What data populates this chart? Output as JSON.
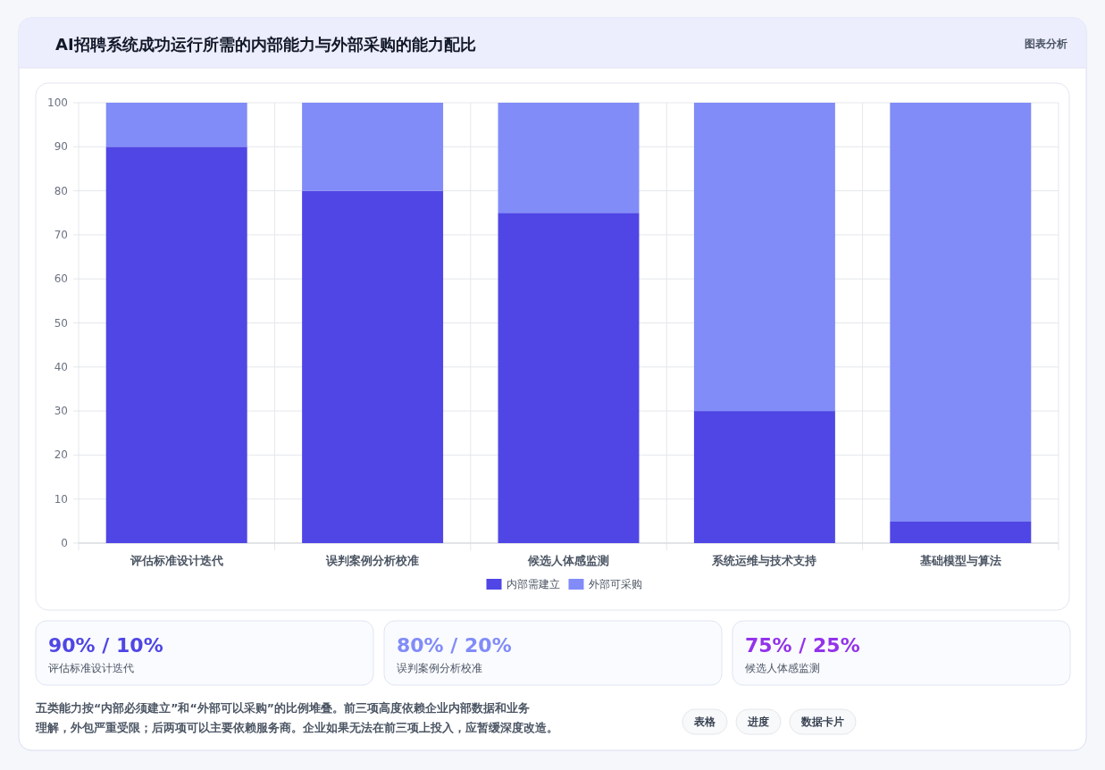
{
  "chart_data": [
    {
      "type": "bar",
      "title": "AI招聘系统成功运行所需的内部能力与外部采购的能力配比",
      "categories": [
        "评估标准设计迭代",
        "误判案例分析校准",
        "候选人体感监测",
        "系统运维与技术支持",
        "基础模型与算法"
      ],
      "series": [
        {
          "name": "内部需建立",
          "color": "#4f46e5",
          "values": [
            90,
            80,
            75,
            30,
            5
          ]
        },
        {
          "name": "外部可采购",
          "color": "#818cf8",
          "values": [
            10,
            20,
            25,
            70,
            95
          ]
        }
      ],
      "stacked": true,
      "ylim": [
        0,
        100
      ],
      "yticks": [
        0,
        10,
        20,
        30,
        40,
        50,
        60,
        70,
        80,
        90,
        100
      ],
      "grid": true,
      "legend": "bottom",
      "annotations": [
        "图表分析",
        "五类能力按“内部必须建立”和“外部可以采购”的比例堆叠。前三项高度依赖企业内部数据和业务理解，外包严重受限；后两项可以主要依赖服务商。企业如果无法在前三项上投入，应暂缓深度改造。",
        "表格",
        "进度",
        "数据卡片"
      ]
    },
    {
      "type": "other",
      "annotations": [
        "90% / 10%",
        "评估标准设计迭代",
        "80% / 20%",
        "误判案例分析校准",
        "75% / 25%",
        "候选人体感监测"
      ],
      "colors": [
        "#4f46e5",
        "#818cf8",
        "#9333ea"
      ]
    }
  ]
}
